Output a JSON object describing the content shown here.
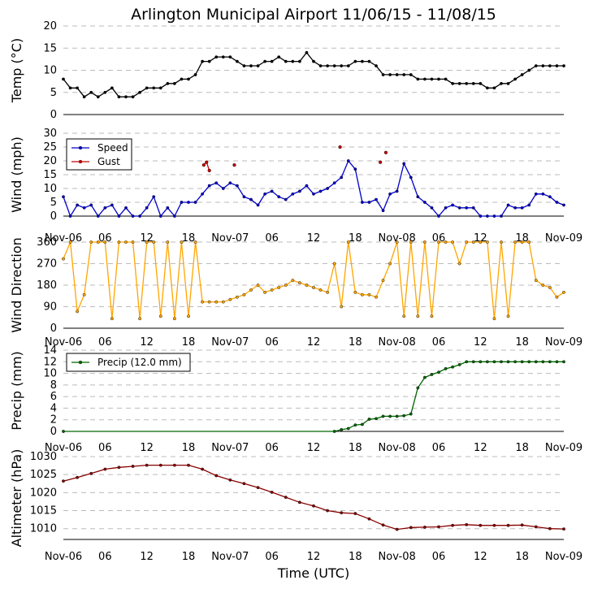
{
  "chart_data": [
    {
      "id": "temp",
      "type": "line",
      "title": "Arlington Municipal Airport 11/06/15 - 11/08/15",
      "ylabel": "Temp (°C)",
      "ylim": [
        0,
        20
      ],
      "yticks": [
        0,
        5,
        10,
        15,
        20
      ],
      "ytick_labels": [
        "0",
        "5",
        "10",
        "15",
        "20"
      ],
      "xlim": [
        0,
        72
      ],
      "grid": "horizontal-dashed",
      "series": [
        {
          "name": "Temp",
          "color": "#000000",
          "x": [
            0,
            1,
            2,
            3,
            4,
            5,
            6,
            7,
            8,
            9,
            10,
            11,
            12,
            13,
            14,
            15,
            16,
            17,
            18,
            19,
            20,
            21,
            22,
            23,
            24,
            25,
            26,
            27,
            28,
            29,
            30,
            31,
            32,
            33,
            34,
            35,
            36,
            37,
            38,
            39,
            40,
            41,
            42,
            43,
            44,
            45,
            46,
            47,
            48,
            49,
            50,
            51,
            52,
            53,
            54,
            55,
            56,
            57,
            58,
            59,
            60,
            61,
            62,
            63,
            64,
            65,
            66,
            67,
            68,
            69,
            70,
            71,
            72
          ],
          "values": [
            8,
            6,
            6,
            4,
            5,
            4,
            5,
            6,
            4,
            4,
            4,
            5,
            6,
            6,
            6,
            7,
            7,
            8,
            8,
            9,
            12,
            12,
            13,
            13,
            13,
            12,
            11,
            11,
            11,
            12,
            12,
            13,
            12,
            12,
            12,
            14,
            12,
            11,
            11,
            11,
            11,
            11,
            12,
            12,
            12,
            11,
            9,
            9,
            9,
            9,
            9,
            8,
            8,
            8,
            8,
            8,
            7,
            7,
            7,
            7,
            7,
            6,
            6,
            7,
            7,
            8,
            9,
            10,
            11,
            11,
            11,
            11,
            11
          ]
        }
      ]
    },
    {
      "id": "wind",
      "type": "line",
      "ylabel": "Wind (mph)",
      "ylim": [
        0,
        30
      ],
      "yticks": [
        0,
        5,
        10,
        15,
        20,
        25,
        30
      ],
      "ytick_labels": [
        "0",
        "5",
        "10",
        "15",
        "20",
        "25",
        "30"
      ],
      "xlim": [
        0,
        72
      ],
      "grid": "horizontal-dashed",
      "legend": "upper-left",
      "series": [
        {
          "name": "Speed",
          "color": "#0000cc",
          "x": [
            0,
            1,
            2,
            3,
            4,
            5,
            6,
            7,
            8,
            9,
            10,
            11,
            12,
            13,
            14,
            15,
            16,
            17,
            18,
            19,
            20,
            21,
            22,
            23,
            24,
            25,
            26,
            27,
            28,
            29,
            30,
            31,
            32,
            33,
            34,
            35,
            36,
            37,
            38,
            39,
            40,
            41,
            42,
            43,
            44,
            45,
            46,
            47,
            48,
            49,
            50,
            51,
            52,
            53,
            54,
            55,
            56,
            57,
            58,
            59,
            60,
            61,
            62,
            63,
            64,
            65,
            66,
            67,
            68,
            69,
            70,
            71,
            72
          ],
          "values": [
            7,
            0,
            4,
            3,
            4,
            0,
            3,
            4,
            0,
            3,
            0,
            0,
            3,
            7,
            0,
            3,
            0,
            5,
            5,
            5,
            8,
            11,
            12,
            10,
            12,
            11,
            7,
            6,
            4,
            8,
            9,
            7,
            6,
            8,
            9,
            11,
            8,
            9,
            10,
            12,
            14,
            20,
            17,
            5,
            5,
            6,
            2,
            8,
            9,
            19,
            14,
            7,
            5,
            3,
            0,
            3,
            4,
            3,
            3,
            3,
            0,
            0,
            0,
            0,
            4,
            3,
            3,
            4,
            8,
            8,
            7,
            5,
            4
          ]
        },
        {
          "name": "Gust",
          "color": "#cc0000",
          "x": [
            20.2,
            20.6,
            21.0,
            24.6,
            39.8,
            45.6,
            46.4
          ],
          "values": [
            18.5,
            19.5,
            16.5,
            18.5,
            25,
            19.5,
            23
          ]
        }
      ]
    },
    {
      "id": "winddir",
      "type": "line",
      "ylabel": "Wind Direction",
      "ylim": [
        0,
        360
      ],
      "yticks": [
        0,
        90,
        180,
        270,
        360
      ],
      "ytick_labels": [
        "0",
        "90",
        "180",
        "270",
        "360"
      ],
      "xlim": [
        0,
        72
      ],
      "grid": "horizontal-dashed",
      "series": [
        {
          "name": "Direction",
          "color": "#ffa500",
          "x": [
            0,
            1,
            2,
            3,
            4,
            5,
            6,
            7,
            8,
            9,
            10,
            11,
            12,
            13,
            14,
            15,
            16,
            17,
            18,
            19,
            20,
            21,
            22,
            23,
            24,
            25,
            26,
            27,
            28,
            29,
            30,
            31,
            32,
            33,
            34,
            35,
            36,
            37,
            38,
            39,
            40,
            41,
            42,
            43,
            44,
            45,
            46,
            47,
            48,
            49,
            50,
            51,
            52,
            53,
            54,
            55,
            56,
            57,
            58,
            59,
            60,
            61,
            62,
            63,
            64,
            65,
            66,
            67,
            68,
            69,
            70,
            71,
            72
          ],
          "values": [
            290,
            360,
            70,
            140,
            360,
            360,
            360,
            40,
            360,
            360,
            360,
            40,
            360,
            360,
            50,
            360,
            40,
            360,
            50,
            360,
            110,
            110,
            110,
            110,
            120,
            130,
            140,
            160,
            180,
            150,
            160,
            170,
            180,
            200,
            190,
            180,
            170,
            160,
            150,
            270,
            90,
            360,
            150,
            140,
            140,
            130,
            200,
            270,
            360,
            50,
            360,
            50,
            360,
            50,
            360,
            360,
            360,
            270,
            360,
            360,
            360,
            360,
            40,
            360,
            50,
            360,
            360,
            360,
            200,
            180,
            170,
            130,
            150
          ]
        }
      ]
    },
    {
      "id": "precip",
      "type": "line",
      "ylabel": "Precip (mm)",
      "ylim": [
        0,
        14
      ],
      "yticks": [
        0,
        2,
        4,
        6,
        8,
        10,
        12,
        14
      ],
      "ytick_labels": [
        "0",
        "2",
        "4",
        "6",
        "8",
        "10",
        "12",
        "14"
      ],
      "xlim": [
        0,
        72
      ],
      "grid": "horizontal-dashed",
      "legend": "upper-left",
      "series": [
        {
          "name": "Precip (12.0 mm)",
          "color": "#006600",
          "x": [
            0,
            39,
            40,
            41,
            42,
            43,
            44,
            45,
            46,
            47,
            48,
            49,
            50,
            51,
            52,
            53,
            54,
            55,
            56,
            57,
            58,
            59,
            60,
            61,
            62,
            63,
            64,
            65,
            66,
            67,
            68,
            69,
            70,
            71,
            72
          ],
          "values": [
            0,
            0,
            0.3,
            0.5,
            1.1,
            1.2,
            2.1,
            2.2,
            2.6,
            2.6,
            2.6,
            2.7,
            3.0,
            7.5,
            9.3,
            9.8,
            10.2,
            10.8,
            11.1,
            11.5,
            12.0,
            12.0,
            12.0,
            12.0,
            12.0,
            12.0,
            12.0,
            12.0,
            12.0,
            12.0,
            12.0,
            12.0,
            12.0,
            12.0,
            12.0
          ]
        }
      ]
    },
    {
      "id": "altimeter",
      "type": "line",
      "ylabel": "Altimeter (hPa)",
      "ylim": [
        1007,
        1030
      ],
      "yticks": [
        1010,
        1015,
        1020,
        1025,
        1030
      ],
      "ytick_labels": [
        "1010",
        "1015",
        "1020",
        "1025",
        "1030"
      ],
      "xlim": [
        0,
        72
      ],
      "grid": "horizontal-dashed",
      "xlabel": "Time (UTC)",
      "series": [
        {
          "name": "Altimeter",
          "color": "#880000",
          "x": [
            0,
            2,
            4,
            6,
            8,
            10,
            12,
            14,
            16,
            18,
            20,
            22,
            24,
            26,
            28,
            30,
            32,
            34,
            36,
            38,
            40,
            42,
            44,
            46,
            48,
            50,
            52,
            54,
            56,
            58,
            60,
            62,
            64,
            66,
            68,
            70,
            72
          ],
          "values": [
            1023.2,
            1024.2,
            1025.3,
            1026.5,
            1027.0,
            1027.3,
            1027.6,
            1027.6,
            1027.6,
            1027.6,
            1026.5,
            1024.7,
            1023.5,
            1022.5,
            1021.4,
            1020.1,
            1018.7,
            1017.3,
            1016.3,
            1015.0,
            1014.4,
            1014.2,
            1012.7,
            1011.0,
            1009.8,
            1010.3,
            1010.4,
            1010.5,
            1010.9,
            1011.1,
            1010.9,
            1010.9,
            1010.9,
            1011.0,
            1010.5,
            1010.0,
            1009.9
          ]
        }
      ]
    }
  ],
  "x_axis": {
    "ticks": [
      0,
      6,
      12,
      18,
      24,
      30,
      36,
      42,
      48,
      54,
      60,
      66,
      72
    ],
    "labels": [
      "Nov-06",
      "06",
      "12",
      "18",
      "Nov-07",
      "06",
      "12",
      "18",
      "Nov-08",
      "06",
      "12",
      "18",
      "Nov-09"
    ]
  }
}
